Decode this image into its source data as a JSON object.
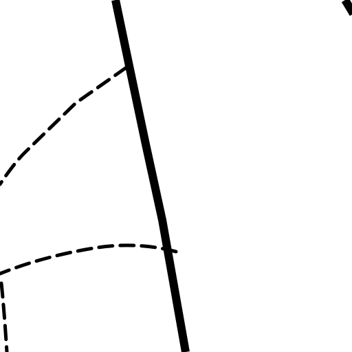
{
  "map": {
    "background_color": "#ffffff",
    "line_color": "#000000",
    "features": [
      {
        "id": "solid-road-main",
        "style": "solid"
      },
      {
        "id": "solid-road-corner",
        "style": "solid"
      },
      {
        "id": "dashed-path-upper",
        "style": "dashed"
      },
      {
        "id": "dashed-path-middle",
        "style": "dashed"
      },
      {
        "id": "dashed-path-left",
        "style": "dashed"
      }
    ]
  }
}
